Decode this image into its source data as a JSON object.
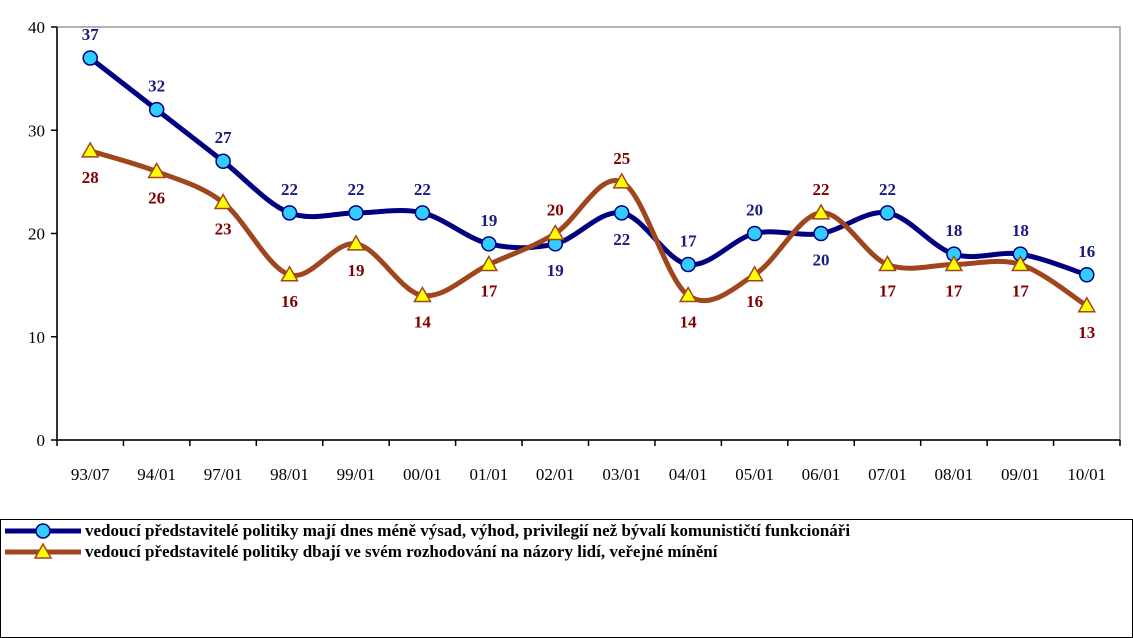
{
  "chart_data": {
    "type": "line",
    "categories": [
      "93/07",
      "94/01",
      "97/01",
      "98/01",
      "99/01",
      "00/01",
      "01/01",
      "02/01",
      "03/01",
      "04/01",
      "05/01",
      "06/01",
      "07/01",
      "08/01",
      "09/01",
      "10/01"
    ],
    "series": [
      {
        "name": "vedoucí představitelé politiky mají dnes méně výsad, výhod, privilegií než bývalí komunističtí funkcionáři",
        "color": "#000080",
        "marker_color": "#33ccff",
        "label_color": "#1a1a80",
        "values": [
          37,
          32,
          27,
          22,
          22,
          22,
          19,
          19,
          22,
          17,
          20,
          20,
          22,
          18,
          18,
          16
        ]
      },
      {
        "name": "vedoucí představitelé politiky dbají ve svém rozhodování na názory lidí, veřejné mínění",
        "color": "#a0461e",
        "marker_color": "#ffff00",
        "label_color": "#800000",
        "values": [
          28,
          26,
          23,
          16,
          19,
          14,
          17,
          20,
          25,
          14,
          16,
          22,
          17,
          17,
          17,
          13
        ]
      }
    ],
    "ylim": [
      0,
      40
    ],
    "yticks": [
      0,
      10,
      20,
      30,
      40
    ],
    "smooth": true
  }
}
